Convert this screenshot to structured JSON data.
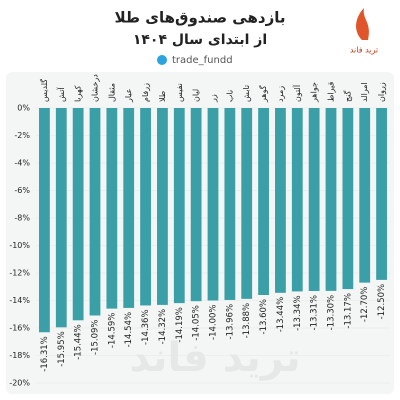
{
  "chart_data": {
    "type": "bar",
    "title": "بازدهی صندوق‌های طلا",
    "subtitle": "از ابتدای سال ۱۴۰۴",
    "handle": "trade_fundd",
    "brand": "ترید فاند",
    "categories": [
      "گلدیس",
      "آتش",
      "کهربا",
      "درخشان",
      "مثقال",
      "عیار",
      "زرفام",
      "طلا",
      "نفیس",
      "لیان",
      "زر",
      "ناب",
      "تابش",
      "گوهر",
      "زمرد",
      "آلتون",
      "جواهر",
      "قیراط",
      "گنج",
      "امرالد",
      "زروان"
    ],
    "values": [
      -16.31,
      -15.95,
      -15.44,
      -15.09,
      -14.59,
      -14.54,
      -14.36,
      -14.32,
      -14.19,
      -14.05,
      -14.0,
      -13.96,
      -13.88,
      -13.6,
      -13.44,
      -13.34,
      -13.31,
      -13.3,
      -13.17,
      -12.7,
      -12.5
    ],
    "value_labels": [
      "-16.31%",
      "-15.95%",
      "-15.44%",
      "-15.09%",
      "-14.59%",
      "-14.54%",
      "-14.36%",
      "-14.32%",
      "-14.19%",
      "-14.05%",
      "-14.00%",
      "-13.96%",
      "-13.88%",
      "-13.60%",
      "-13.44%",
      "-13.34%",
      "-13.31%",
      "-13.30%",
      "-13.17%",
      "-12.70%",
      "-12.50%"
    ],
    "color": "#3a9fa6",
    "ylim": [
      -20,
      0
    ],
    "yticks": [
      {
        "value": 0,
        "label": "0%"
      },
      {
        "value": -2,
        "label": "-2%"
      },
      {
        "value": -4,
        "label": "-4%"
      },
      {
        "value": -6,
        "label": "-6%"
      },
      {
        "value": -8,
        "label": "-8%"
      },
      {
        "value": -10,
        "label": "-10%"
      },
      {
        "value": -12,
        "label": "-12%"
      },
      {
        "value": -14,
        "label": "-14%"
      },
      {
        "value": -16,
        "label": "-16%"
      },
      {
        "value": -18,
        "label": "-18%"
      },
      {
        "value": -20,
        "label": "-20%"
      }
    ],
    "grid": true
  }
}
